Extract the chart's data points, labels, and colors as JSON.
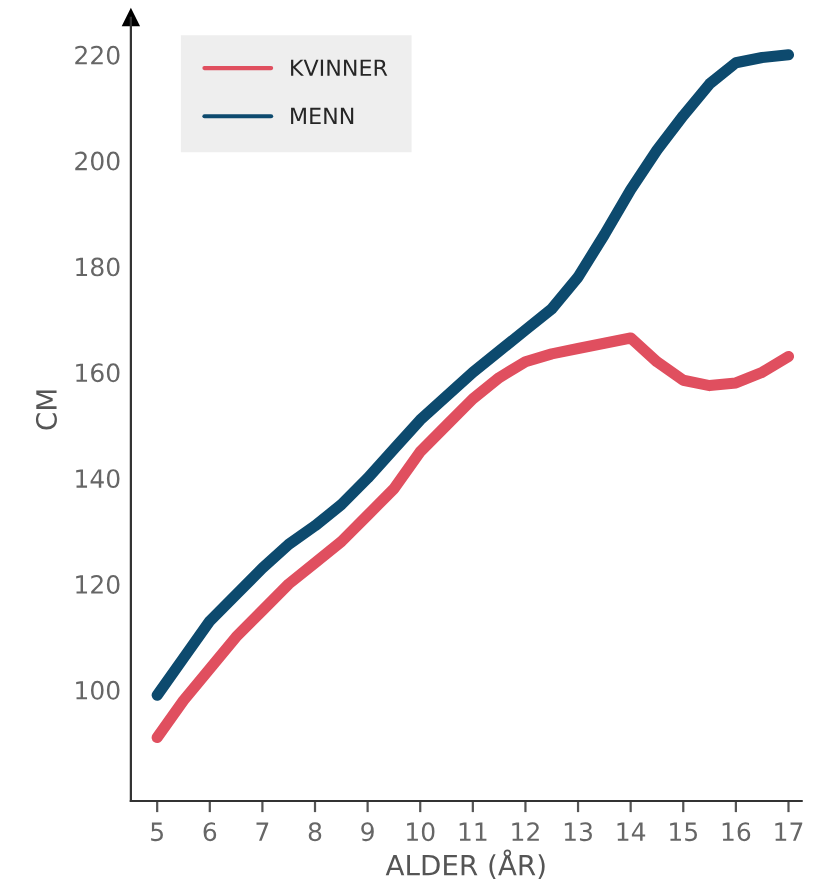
{
  "chart_data": {
    "type": "line",
    "xlabel": "ALDER (ÅR)",
    "ylabel": "CM",
    "x": [
      5,
      5.5,
      6,
      6.5,
      7,
      7.5,
      8,
      8.5,
      9,
      9.5,
      10,
      10.5,
      11,
      11.5,
      12,
      12.5,
      13,
      13.5,
      14,
      14.5,
      15,
      15.5,
      16,
      16.5,
      17
    ],
    "series": [
      {
        "name": "KVINNER",
        "color": "#e04f5f",
        "values": [
          91,
          98,
          104,
          110,
          115,
          120,
          124,
          128,
          133,
          138,
          145,
          150,
          155,
          159,
          162,
          163.5,
          164.5,
          165.5,
          166.5,
          162,
          158.5,
          157.5,
          158,
          160,
          163
        ]
      },
      {
        "name": "MENN",
        "color": "#0d4a6e",
        "values": [
          99,
          106,
          113,
          118,
          123,
          127.5,
          131,
          135,
          140,
          145.5,
          151,
          155.5,
          160,
          164,
          168,
          172,
          178,
          186,
          194.5,
          202,
          208.5,
          214.5,
          218.5,
          219.5,
          220
        ]
      }
    ],
    "xlim": [
      4.5,
      17.25
    ],
    "ylim": [
      79,
      227
    ],
    "xticks": [
      5,
      6,
      7,
      8,
      9,
      10,
      11,
      12,
      13,
      14,
      15,
      16,
      17
    ],
    "yticks": [
      100,
      120,
      140,
      160,
      180,
      200,
      220
    ],
    "grid": false,
    "legend": "top left",
    "marker": "none",
    "line_style": "solid"
  }
}
